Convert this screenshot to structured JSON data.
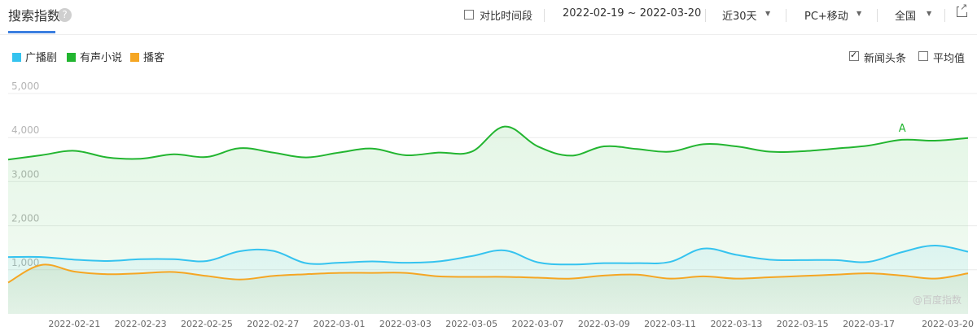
{
  "header": {
    "title": "搜索指数",
    "help_icon": "question-circle-icon",
    "compare_label": "对比时间段",
    "date_range": "2022-02-19 ~ 2022-03-20",
    "period": "近30天",
    "device": "PC+移动",
    "region": "全国",
    "export_icon": "external-link-icon"
  },
  "options": {
    "news_label": "新闻头条",
    "news_checked": true,
    "average_label": "平均值",
    "average_checked": false
  },
  "watermark": "@百度指数",
  "annotation": "A",
  "chart_data": {
    "type": "area",
    "ylim": [
      0,
      5000
    ],
    "yticks": [
      "1,000",
      "2,000",
      "3,000",
      "4,000",
      "5,000"
    ],
    "ytick_values": [
      1000,
      2000,
      3000,
      4000,
      5000
    ],
    "xlabels": [
      "2022-02-21",
      "2022-02-23",
      "2022-02-25",
      "2022-02-27",
      "2022-03-01",
      "2022-03-03",
      "2022-03-05",
      "2022-03-07",
      "2022-03-09",
      "2022-03-11",
      "2022-03-13",
      "2022-03-15",
      "2022-03-17",
      "2022-03-20"
    ],
    "x": [
      "2022-02-19",
      "2022-02-20",
      "2022-02-21",
      "2022-02-22",
      "2022-02-23",
      "2022-02-24",
      "2022-02-25",
      "2022-02-26",
      "2022-02-27",
      "2022-02-28",
      "2022-03-01",
      "2022-03-02",
      "2022-03-03",
      "2022-03-04",
      "2022-03-05",
      "2022-03-06",
      "2022-03-07",
      "2022-03-08",
      "2022-03-09",
      "2022-03-10",
      "2022-03-11",
      "2022-03-12",
      "2022-03-13",
      "2022-03-14",
      "2022-03-15",
      "2022-03-16",
      "2022-03-17",
      "2022-03-18",
      "2022-03-19",
      "2022-03-20"
    ],
    "series": [
      {
        "name": "广播剧",
        "color": "#35c3ef",
        "values": [
          1290,
          1290,
          1230,
          1200,
          1240,
          1240,
          1200,
          1420,
          1430,
          1150,
          1160,
          1190,
          1160,
          1190,
          1310,
          1440,
          1170,
          1120,
          1150,
          1150,
          1180,
          1480,
          1340,
          1230,
          1220,
          1220,
          1180,
          1400,
          1550,
          1410
        ]
      },
      {
        "name": "有声小说",
        "color": "#22b530",
        "values": [
          3500,
          3600,
          3700,
          3550,
          3520,
          3620,
          3560,
          3760,
          3660,
          3550,
          3660,
          3750,
          3600,
          3660,
          3680,
          4250,
          3800,
          3590,
          3800,
          3740,
          3680,
          3850,
          3800,
          3680,
          3690,
          3750,
          3820,
          3950,
          3930,
          3990
        ]
      },
      {
        "name": "播客",
        "color": "#f5a623",
        "values": [
          710,
          1110,
          960,
          900,
          920,
          950,
          860,
          780,
          860,
          900,
          930,
          930,
          930,
          850,
          840,
          840,
          820,
          800,
          870,
          890,
          800,
          850,
          800,
          830,
          860,
          890,
          920,
          870,
          800,
          920
        ]
      }
    ]
  }
}
